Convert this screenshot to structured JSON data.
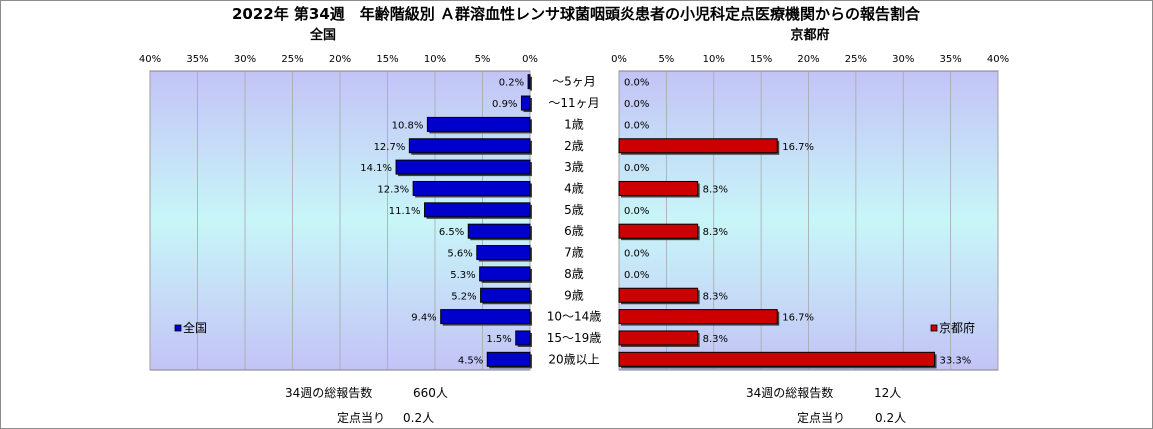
{
  "chart_data": {
    "type": "bar",
    "title": "2022年 第34週　年齢階級別 Ａ群溶血性レンサ球菌咽頭炎患者の小児科定点医療機関からの報告割合",
    "categories": [
      "～5ヶ月",
      "～11ヶ月",
      "1歳",
      "2歳",
      "3歳",
      "4歳",
      "5歳",
      "6歳",
      "7歳",
      "8歳",
      "9歳",
      "10～14歳",
      "15～19歳",
      "20歳以上"
    ],
    "panels": [
      {
        "name": "全国",
        "legend": "全国",
        "color": "#0000cc",
        "xlim": [
          0,
          40
        ],
        "ticks": [
          "40%",
          "35%",
          "30%",
          "25%",
          "20%",
          "15%",
          "10%",
          "5%",
          "0%"
        ],
        "values": [
          0.2,
          0.9,
          10.8,
          12.7,
          14.1,
          12.3,
          11.1,
          6.5,
          5.6,
          5.3,
          5.2,
          9.4,
          1.5,
          4.5
        ],
        "labels": [
          "0.2%",
          "0.9%",
          "10.8%",
          "12.7%",
          "14.1%",
          "12.3%",
          "11.1%",
          "6.5%",
          "5.6%",
          "5.3%",
          "5.2%",
          "9.4%",
          "1.5%",
          "4.5%"
        ],
        "footer": {
          "total_label": "34週の総報告数",
          "total_value": "660人",
          "per_label": "定点当り",
          "per_value": "0.2人"
        }
      },
      {
        "name": "京都府",
        "legend": "京都府",
        "color": "#cc0000",
        "xlim": [
          0,
          40
        ],
        "ticks": [
          "0%",
          "5%",
          "10%",
          "15%",
          "20%",
          "25%",
          "30%",
          "35%",
          "40%"
        ],
        "values": [
          0.0,
          0.0,
          0.0,
          16.7,
          0.0,
          8.3,
          0.0,
          8.3,
          0.0,
          0.0,
          8.3,
          16.7,
          8.3,
          33.3
        ],
        "labels": [
          "0.0%",
          "0.0%",
          "0.0%",
          "16.7%",
          "0.0%",
          "8.3%",
          "0.0%",
          "8.3%",
          "0.0%",
          "0.0%",
          "8.3%",
          "16.7%",
          "8.3%",
          "33.3%"
        ],
        "footer": {
          "total_label": "34週の総報告数",
          "total_value": "12人",
          "per_label": "定点当り",
          "per_value": "0.2人"
        }
      }
    ],
    "grid": true
  }
}
